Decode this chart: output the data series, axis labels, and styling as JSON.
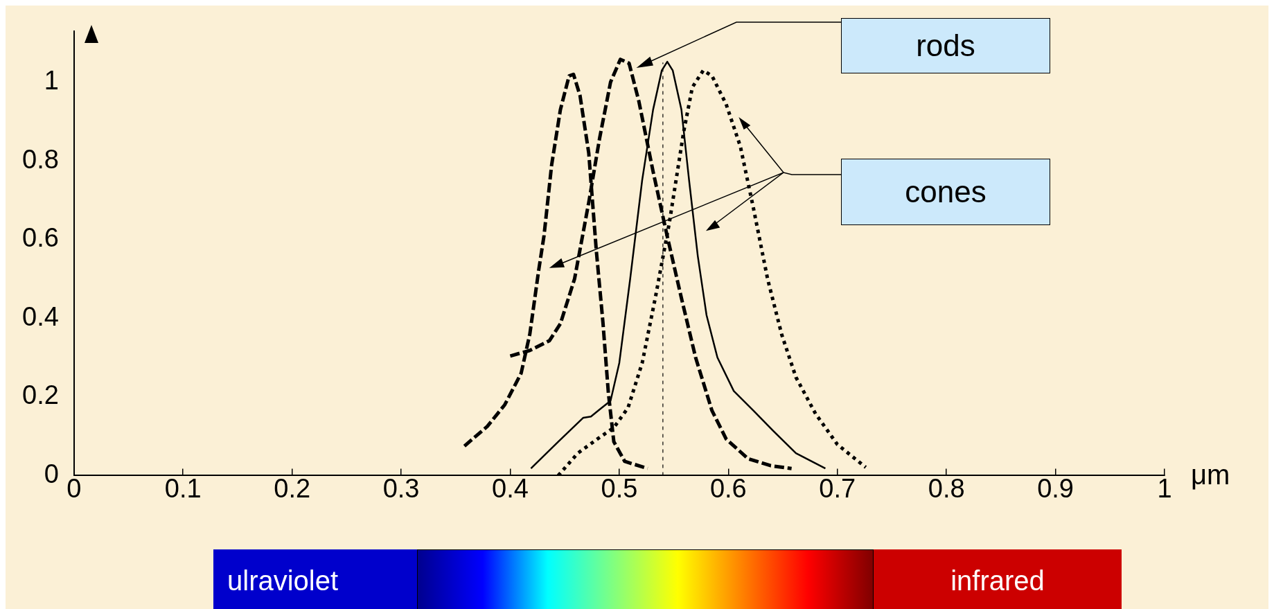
{
  "chart_data": {
    "type": "line",
    "xlabel": "μm",
    "xlim": [
      0,
      1
    ],
    "ylim": [
      0,
      1.13
    ],
    "xticks": [
      0,
      0.1,
      0.2,
      0.3,
      0.4,
      0.5,
      0.6,
      0.7,
      0.8,
      0.9,
      1
    ],
    "yticks": [
      0,
      0.2,
      0.4,
      0.6,
      0.8,
      1
    ],
    "grid": false,
    "legend": false,
    "marker": "none",
    "series": [
      {
        "color": "#000000",
        "line_style": "dashed",
        "x": [
          0.358,
          0.379,
          0.395,
          0.41,
          0.418,
          0.426,
          0.431,
          0.438,
          0.446,
          0.454,
          0.458,
          0.464,
          0.472,
          0.479,
          0.485,
          0.49,
          0.495,
          0.505,
          0.526
        ],
        "values": [
          0.075,
          0.125,
          0.18,
          0.26,
          0.36,
          0.52,
          0.61,
          0.79,
          0.93,
          1.016,
          1.02,
          0.966,
          0.82,
          0.57,
          0.39,
          0.21,
          0.086,
          0.036,
          0.018
        ]
      },
      {
        "color": "#000000",
        "line_style": "dashed",
        "x": [
          0.4,
          0.418,
          0.436,
          0.446,
          0.459,
          0.472,
          0.482,
          0.492,
          0.501,
          0.509,
          0.518,
          0.531,
          0.544,
          0.557,
          0.57,
          0.585,
          0.598,
          0.618,
          0.639,
          0.658
        ],
        "values": [
          0.304,
          0.318,
          0.343,
          0.386,
          0.5,
          0.694,
          0.858,
          1.0,
          1.058,
          1.048,
          0.951,
          0.773,
          0.608,
          0.451,
          0.3,
          0.165,
          0.093,
          0.043,
          0.025,
          0.018
        ]
      },
      {
        "color": "#000000",
        "line_style": "solid",
        "x": [
          0.419,
          0.444,
          0.467,
          0.474,
          0.482,
          0.492,
          0.5,
          0.51,
          0.521,
          0.531,
          0.539,
          0.544,
          0.549,
          0.557,
          0.564,
          0.572,
          0.58,
          0.59,
          0.605,
          0.623,
          0.641,
          0.662,
          0.689
        ],
        "values": [
          0.018,
          0.086,
          0.147,
          0.15,
          0.168,
          0.19,
          0.286,
          0.5,
          0.751,
          0.93,
          1.03,
          1.052,
          1.03,
          0.93,
          0.751,
          0.558,
          0.408,
          0.3,
          0.215,
          0.165,
          0.114,
          0.057,
          0.018
        ]
      },
      {
        "color": "#000000",
        "line_style": "dotted",
        "x": [
          0.444,
          0.462,
          0.48,
          0.495,
          0.508,
          0.521,
          0.533,
          0.546,
          0.559,
          0.567,
          0.577,
          0.585,
          0.598,
          0.611,
          0.623,
          0.636,
          0.649,
          0.662,
          0.68,
          0.7,
          0.726
        ],
        "values": [
          0,
          0.057,
          0.093,
          0.122,
          0.172,
          0.286,
          0.451,
          0.644,
          0.873,
          0.987,
          1.03,
          1.016,
          0.944,
          0.837,
          0.68,
          0.5,
          0.358,
          0.25,
          0.157,
          0.079,
          0.021
        ]
      }
    ],
    "ref_lines": [
      {
        "axis": "x",
        "value": 0.54,
        "line_style": "dotted",
        "color": "#000000"
      }
    ],
    "annotations": [
      "rods",
      "cones",
      "ulraviolet",
      "infrared"
    ]
  }
}
